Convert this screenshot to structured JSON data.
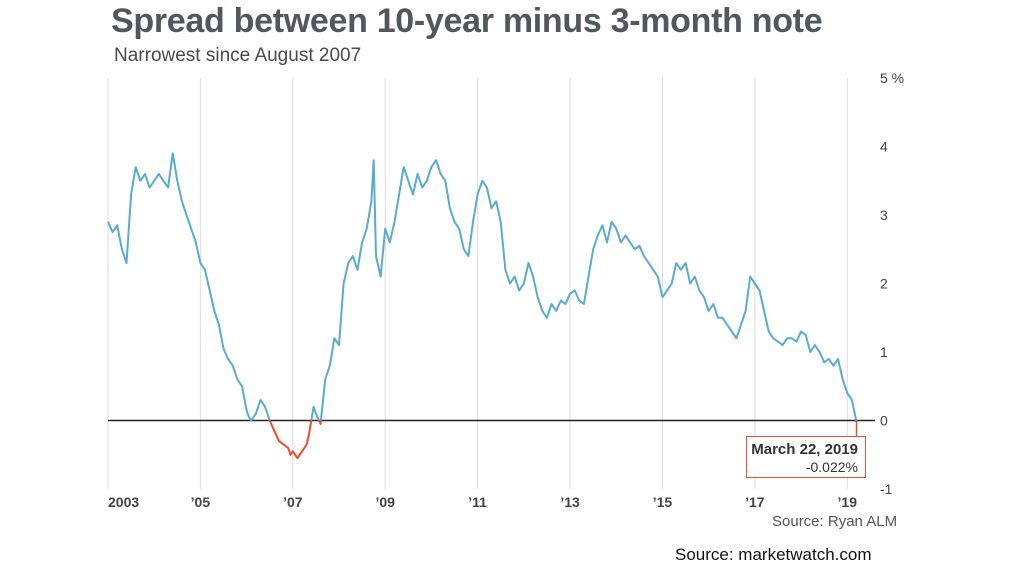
{
  "title": "Spread between 10-year minus 3-month note",
  "subtitle": "Narrowest since August 2007",
  "source": "Source: Ryan ALM",
  "credit": "Source: marketwatch.com",
  "callout": {
    "date": "March 22, 2019",
    "value": "-0.022%"
  },
  "colors": {
    "positive": "#5aabce",
    "negative": "#f04a2f",
    "zero_line": "#222222",
    "grid": "#dddddd"
  },
  "chart_data": {
    "type": "line",
    "title": "Spread between 10-year minus 3-month note",
    "subtitle": "Narrowest since August 2007",
    "ylim": [
      -1,
      5
    ],
    "xlim": [
      2003,
      2019.6
    ],
    "y_ticks": [
      {
        "v": 5,
        "label": "5 %"
      },
      {
        "v": 4,
        "label": "4"
      },
      {
        "v": 3,
        "label": "3"
      },
      {
        "v": 2,
        "label": "2"
      },
      {
        "v": 1,
        "label": "1"
      },
      {
        "v": 0,
        "label": "0"
      },
      {
        "v": -1,
        "label": "-1"
      }
    ],
    "x_ticks": [
      {
        "v": 2003,
        "label": "2003"
      },
      {
        "v": 2005,
        "label": "’05"
      },
      {
        "v": 2007,
        "label": "’07"
      },
      {
        "v": 2009,
        "label": "’09"
      },
      {
        "v": 2011,
        "label": "’11"
      },
      {
        "v": 2013,
        "label": "’13"
      },
      {
        "v": 2015,
        "label": "’15"
      },
      {
        "v": 2017,
        "label": "’17"
      },
      {
        "v": 2019,
        "label": "’19"
      }
    ],
    "grid": "vertical",
    "series": [
      {
        "values": [
          [
            2003.0,
            2.9
          ],
          [
            2003.1,
            2.75
          ],
          [
            2003.2,
            2.85
          ],
          [
            2003.3,
            2.5
          ],
          [
            2003.4,
            2.3
          ],
          [
            2003.5,
            3.3
          ],
          [
            2003.6,
            3.7
          ],
          [
            2003.7,
            3.5
          ],
          [
            2003.8,
            3.6
          ],
          [
            2003.9,
            3.4
          ],
          [
            2004.0,
            3.5
          ],
          [
            2004.1,
            3.6
          ],
          [
            2004.2,
            3.5
          ],
          [
            2004.3,
            3.4
          ],
          [
            2004.4,
            3.9
          ],
          [
            2004.5,
            3.5
          ],
          [
            2004.6,
            3.2
          ],
          [
            2004.7,
            3.0
          ],
          [
            2004.8,
            2.8
          ],
          [
            2004.9,
            2.6
          ],
          [
            2005.0,
            2.3
          ],
          [
            2005.1,
            2.2
          ],
          [
            2005.2,
            1.9
          ],
          [
            2005.3,
            1.6
          ],
          [
            2005.4,
            1.4
          ],
          [
            2005.5,
            1.05
          ],
          [
            2005.6,
            0.9
          ],
          [
            2005.7,
            0.8
          ],
          [
            2005.8,
            0.6
          ],
          [
            2005.9,
            0.5
          ],
          [
            2006.0,
            0.15
          ],
          [
            2006.05,
            0.05
          ],
          [
            2006.1,
            0.0
          ],
          [
            2006.2,
            0.1
          ],
          [
            2006.3,
            0.3
          ],
          [
            2006.4,
            0.2
          ],
          [
            2006.5,
            0.0
          ],
          [
            2006.6,
            -0.15
          ],
          [
            2006.7,
            -0.3
          ],
          [
            2006.8,
            -0.35
          ],
          [
            2006.9,
            -0.4
          ],
          [
            2006.95,
            -0.5
          ],
          [
            2007.0,
            -0.45
          ],
          [
            2007.1,
            -0.55
          ],
          [
            2007.2,
            -0.45
          ],
          [
            2007.3,
            -0.35
          ],
          [
            2007.35,
            -0.2
          ],
          [
            2007.4,
            0.0
          ],
          [
            2007.45,
            0.2
          ],
          [
            2007.5,
            0.1
          ],
          [
            2007.6,
            -0.05
          ],
          [
            2007.7,
            0.6
          ],
          [
            2007.8,
            0.8
          ],
          [
            2007.9,
            1.2
          ],
          [
            2008.0,
            1.1
          ],
          [
            2008.1,
            2.0
          ],
          [
            2008.2,
            2.3
          ],
          [
            2008.3,
            2.4
          ],
          [
            2008.4,
            2.2
          ],
          [
            2008.5,
            2.6
          ],
          [
            2008.6,
            2.8
          ],
          [
            2008.7,
            3.2
          ],
          [
            2008.75,
            3.8
          ],
          [
            2008.8,
            2.4
          ],
          [
            2008.9,
            2.1
          ],
          [
            2009.0,
            2.8
          ],
          [
            2009.1,
            2.6
          ],
          [
            2009.2,
            2.9
          ],
          [
            2009.3,
            3.3
          ],
          [
            2009.4,
            3.7
          ],
          [
            2009.5,
            3.5
          ],
          [
            2009.6,
            3.3
          ],
          [
            2009.7,
            3.6
          ],
          [
            2009.8,
            3.4
          ],
          [
            2009.9,
            3.5
          ],
          [
            2010.0,
            3.7
          ],
          [
            2010.1,
            3.8
          ],
          [
            2010.2,
            3.6
          ],
          [
            2010.3,
            3.5
          ],
          [
            2010.4,
            3.1
          ],
          [
            2010.5,
            2.9
          ],
          [
            2010.6,
            2.8
          ],
          [
            2010.7,
            2.5
          ],
          [
            2010.8,
            2.4
          ],
          [
            2010.9,
            2.9
          ],
          [
            2011.0,
            3.3
          ],
          [
            2011.1,
            3.5
          ],
          [
            2011.2,
            3.4
          ],
          [
            2011.3,
            3.1
          ],
          [
            2011.4,
            3.2
          ],
          [
            2011.5,
            2.9
          ],
          [
            2011.6,
            2.2
          ],
          [
            2011.7,
            2.0
          ],
          [
            2011.8,
            2.1
          ],
          [
            2011.9,
            1.9
          ],
          [
            2012.0,
            2.0
          ],
          [
            2012.1,
            2.3
          ],
          [
            2012.2,
            2.1
          ],
          [
            2012.3,
            1.8
          ],
          [
            2012.4,
            1.6
          ],
          [
            2012.5,
            1.5
          ],
          [
            2012.6,
            1.7
          ],
          [
            2012.7,
            1.6
          ],
          [
            2012.8,
            1.75
          ],
          [
            2012.9,
            1.7
          ],
          [
            2013.0,
            1.85
          ],
          [
            2013.1,
            1.9
          ],
          [
            2013.2,
            1.75
          ],
          [
            2013.3,
            1.7
          ],
          [
            2013.4,
            2.1
          ],
          [
            2013.5,
            2.5
          ],
          [
            2013.6,
            2.7
          ],
          [
            2013.7,
            2.85
          ],
          [
            2013.8,
            2.6
          ],
          [
            2013.9,
            2.9
          ],
          [
            2014.0,
            2.8
          ],
          [
            2014.1,
            2.6
          ],
          [
            2014.2,
            2.7
          ],
          [
            2014.3,
            2.6
          ],
          [
            2014.4,
            2.5
          ],
          [
            2014.5,
            2.55
          ],
          [
            2014.6,
            2.4
          ],
          [
            2014.7,
            2.3
          ],
          [
            2014.8,
            2.2
          ],
          [
            2014.9,
            2.1
          ],
          [
            2015.0,
            1.8
          ],
          [
            2015.1,
            1.9
          ],
          [
            2015.2,
            2.0
          ],
          [
            2015.3,
            2.3
          ],
          [
            2015.4,
            2.2
          ],
          [
            2015.5,
            2.3
          ],
          [
            2015.6,
            2.0
          ],
          [
            2015.7,
            2.1
          ],
          [
            2015.8,
            1.9
          ],
          [
            2015.9,
            1.8
          ],
          [
            2016.0,
            1.6
          ],
          [
            2016.1,
            1.7
          ],
          [
            2016.2,
            1.5
          ],
          [
            2016.3,
            1.5
          ],
          [
            2016.4,
            1.4
          ],
          [
            2016.5,
            1.3
          ],
          [
            2016.6,
            1.2
          ],
          [
            2016.7,
            1.4
          ],
          [
            2016.8,
            1.6
          ],
          [
            2016.9,
            2.1
          ],
          [
            2017.0,
            2.0
          ],
          [
            2017.1,
            1.9
          ],
          [
            2017.2,
            1.6
          ],
          [
            2017.3,
            1.3
          ],
          [
            2017.4,
            1.2
          ],
          [
            2017.5,
            1.15
          ],
          [
            2017.6,
            1.1
          ],
          [
            2017.7,
            1.2
          ],
          [
            2017.8,
            1.2
          ],
          [
            2017.9,
            1.15
          ],
          [
            2018.0,
            1.3
          ],
          [
            2018.1,
            1.25
          ],
          [
            2018.2,
            1.0
          ],
          [
            2018.3,
            1.1
          ],
          [
            2018.4,
            1.0
          ],
          [
            2018.5,
            0.85
          ],
          [
            2018.6,
            0.9
          ],
          [
            2018.7,
            0.8
          ],
          [
            2018.8,
            0.9
          ],
          [
            2018.9,
            0.6
          ],
          [
            2019.0,
            0.4
          ],
          [
            2019.1,
            0.3
          ],
          [
            2019.2,
            -0.022
          ]
        ]
      }
    ],
    "annotation": {
      "x": 2019.2,
      "y": -0.022,
      "label": "March 22, 2019",
      "value_label": "-0.022%"
    }
  }
}
